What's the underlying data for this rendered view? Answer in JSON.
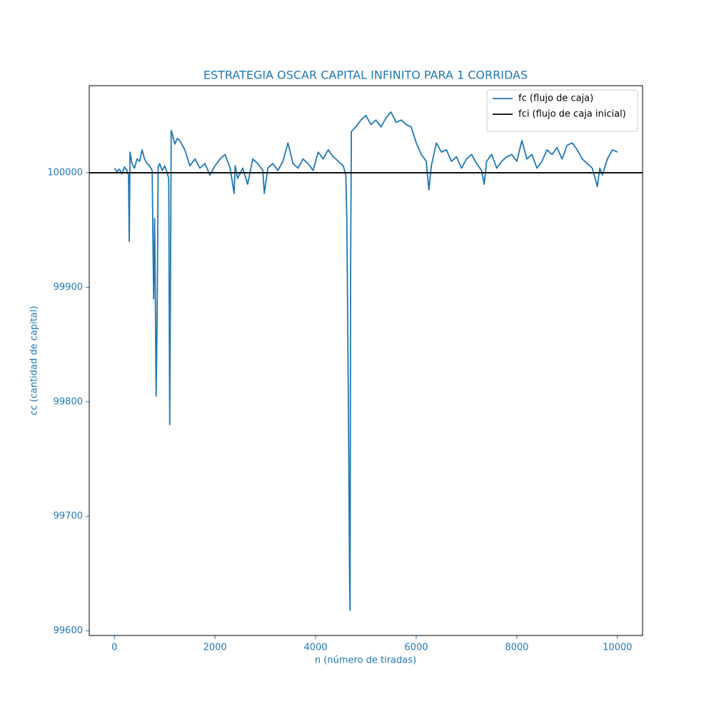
{
  "chart_data": {
    "type": "line",
    "title": "ESTRATEGIA OSCAR CAPITAL INFINITO PARA 1 CORRIDAS",
    "x_label": "n (número de tiradas)",
    "y_label": "cc (cantidad de capital)",
    "xlim": [
      -500,
      10500
    ],
    "ylim": [
      99596,
      100076
    ],
    "xticks": [
      0,
      2000,
      4000,
      6000,
      8000,
      10000
    ],
    "yticks": [
      99600,
      99700,
      99800,
      99900,
      100000
    ],
    "legend": "upper right",
    "reference_line": {
      "name": "fci (flujo de caja inicial)",
      "value": 100000,
      "color": "#000000"
    },
    "series": [
      {
        "name": "fc (flujo de caja)",
        "color": "#1f77b4",
        "x": [
          0,
          50,
          100,
          150,
          200,
          250,
          280,
          295,
          300,
          310,
          350,
          400,
          450,
          500,
          550,
          600,
          650,
          700,
          750,
          780,
          800,
          830,
          850,
          870,
          900,
          950,
          1000,
          1050,
          1080,
          1100,
          1110,
          1130,
          1150,
          1200,
          1250,
          1300,
          1400,
          1500,
          1600,
          1700,
          1800,
          1900,
          2000,
          2100,
          2200,
          2300,
          2380,
          2400,
          2450,
          2550,
          2650,
          2750,
          2850,
          2950,
          2980,
          3050,
          3150,
          3250,
          3350,
          3450,
          3550,
          3650,
          3750,
          3850,
          3950,
          4050,
          4150,
          4250,
          4350,
          4450,
          4550,
          4600,
          4620,
          4640,
          4660,
          4675,
          4685,
          4695,
          4710,
          4800,
          4900,
          5000,
          5100,
          5200,
          5300,
          5400,
          5500,
          5600,
          5700,
          5800,
          5900,
          6000,
          6100,
          6200,
          6250,
          6300,
          6400,
          6500,
          6600,
          6700,
          6800,
          6900,
          7000,
          7100,
          7200,
          7300,
          7350,
          7400,
          7500,
          7600,
          7700,
          7800,
          7900,
          8000,
          8100,
          8200,
          8300,
          8400,
          8500,
          8600,
          8700,
          8800,
          8900,
          9000,
          9100,
          9200,
          9300,
          9400,
          9500,
          9600,
          9650,
          9700,
          9800,
          9900,
          10000
        ],
        "values": [
          100004,
          100001,
          100003,
          99999,
          100005,
          100002,
          99998,
          99940,
          99965,
          100018,
          100008,
          100004,
          100012,
          100010,
          100020,
          100012,
          100008,
          100006,
          100002,
          99890,
          99960,
          99805,
          99875,
          100005,
          100008,
          100002,
          100006,
          100000,
          99995,
          99780,
          99862,
          100037,
          100034,
          100025,
          100030,
          100028,
          100020,
          100006,
          100012,
          100004,
          100008,
          99998,
          100006,
          100012,
          100016,
          100004,
          99982,
          100006,
          99995,
          100004,
          99990,
          100012,
          100008,
          100002,
          99982,
          100004,
          100008,
          100002,
          100010,
          100026,
          100008,
          100004,
          100012,
          100008,
          100002,
          100018,
          100012,
          100020,
          100014,
          100010,
          100006,
          99998,
          99962,
          99862,
          99750,
          99648,
          99618,
          99905,
          100036,
          100040,
          100046,
          100050,
          100042,
          100046,
          100040,
          100048,
          100053,
          100044,
          100046,
          100042,
          100040,
          100026,
          100016,
          100010,
          99985,
          100006,
          100026,
          100018,
          100020,
          100010,
          100014,
          100004,
          100012,
          100016,
          100008,
          100002,
          99990,
          100010,
          100016,
          100004,
          100010,
          100014,
          100016,
          100010,
          100028,
          100012,
          100016,
          100004,
          100010,
          100020,
          100016,
          100022,
          100012,
          100024,
          100026,
          100020,
          100012,
          100008,
          100004,
          99988,
          100004,
          99998,
          100012,
          100020,
          100018
        ]
      }
    ]
  }
}
